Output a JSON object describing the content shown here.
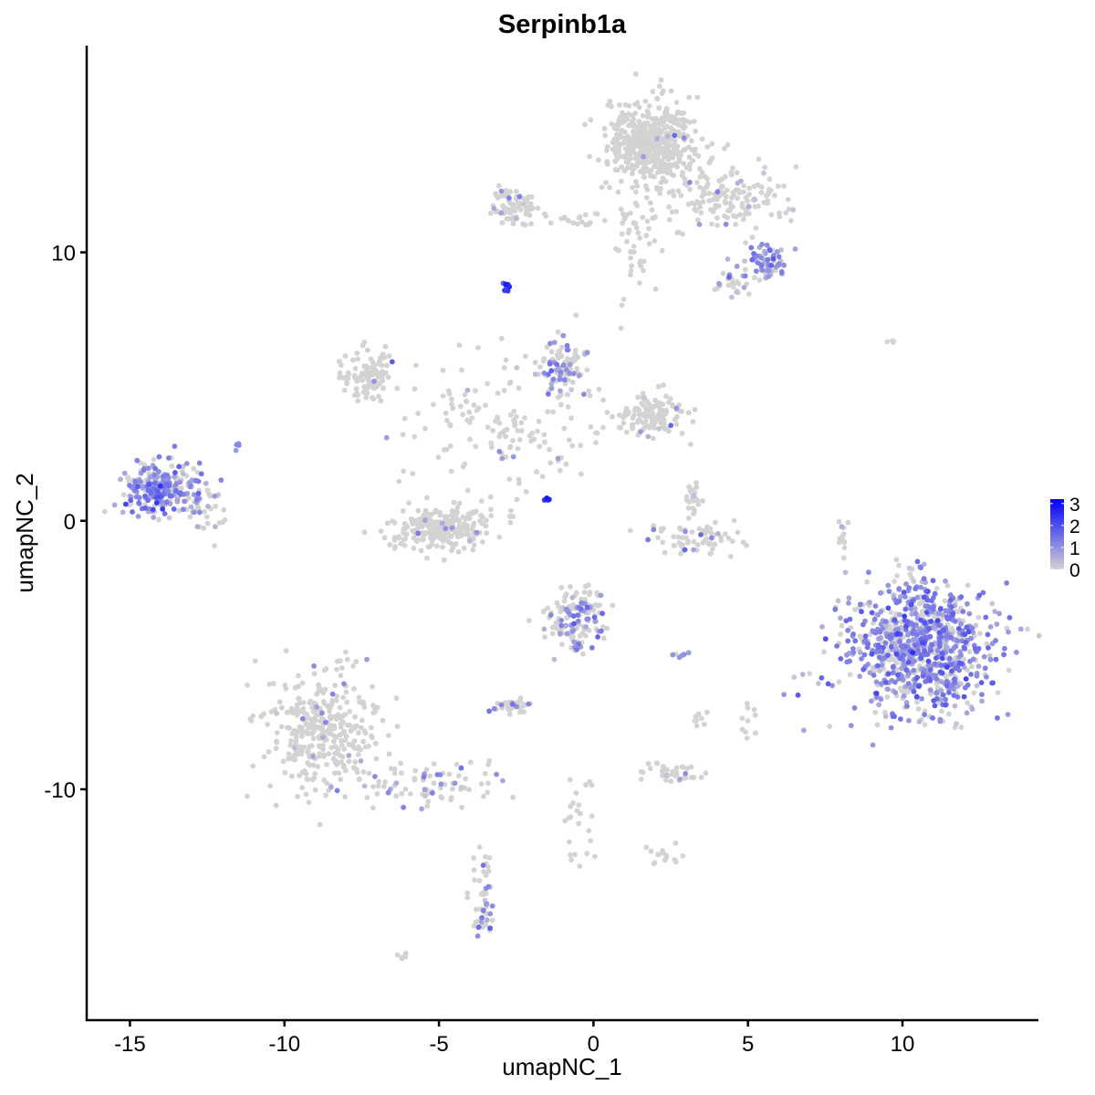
{
  "chart_data": {
    "type": "scatter",
    "title": "Serpinb1a",
    "xlabel": "umapNC_1",
    "ylabel": "umapNC_2",
    "xlim": [
      -16.4,
      14.4
    ],
    "ylim": [
      -18.6,
      17.7
    ],
    "xticks": [
      -15,
      -10,
      -5,
      0,
      5,
      10
    ],
    "yticks": [
      -10,
      0,
      10
    ],
    "xtick_labels": [
      "-15",
      "-10",
      "-5",
      "0",
      "5",
      "10"
    ],
    "ytick_labels": [
      "-10",
      "0",
      "10"
    ],
    "grid": false,
    "legend": {
      "position": "right",
      "min": 0,
      "max": 3.2,
      "ticks": [
        0,
        1,
        2,
        3
      ],
      "tick_labels": [
        "0",
        "1",
        "2",
        "3"
      ],
      "low_color": "#d3d3d3",
      "high_color": "#0000ff"
    },
    "clusters_note": "points summarised as clusters: center, spread (sd), count, fraction expressing, mean expression",
    "clusters": [
      {
        "cx": 1.9,
        "cy": 14.1,
        "sx": 0.7,
        "sy": 0.8,
        "n": 500,
        "p": 0.02,
        "e": 0.8
      },
      {
        "cx": 4.3,
        "cy": 12.0,
        "sx": 0.9,
        "sy": 0.6,
        "n": 150,
        "p": 0.05,
        "e": 0.8
      },
      {
        "cx": -2.5,
        "cy": 11.7,
        "sx": 0.4,
        "sy": 0.35,
        "n": 80,
        "p": 0.05,
        "e": 0.8
      },
      {
        "cx": -0.3,
        "cy": 11.3,
        "sx": 1.0,
        "sy": 0.15,
        "n": 30,
        "p": 0.05,
        "e": 0.8
      },
      {
        "cx": 1.3,
        "cy": 10.3,
        "sx": 0.5,
        "sy": 1.0,
        "n": 40,
        "p": 0.03,
        "e": 0.8
      },
      {
        "cx": 5.6,
        "cy": 9.7,
        "sx": 0.3,
        "sy": 0.3,
        "n": 60,
        "p": 0.8,
        "e": 1.0
      },
      {
        "cx": 4.7,
        "cy": 9.0,
        "sx": 0.4,
        "sy": 0.35,
        "n": 30,
        "p": 0.3,
        "e": 0.9
      },
      {
        "cx": -2.8,
        "cy": 8.7,
        "sx": 0.08,
        "sy": 0.1,
        "n": 10,
        "p": 1.0,
        "e": 2.6
      },
      {
        "cx": -7.3,
        "cy": 5.5,
        "sx": 0.4,
        "sy": 0.5,
        "n": 100,
        "p": 0.03,
        "e": 0.8
      },
      {
        "cx": -1.1,
        "cy": 5.7,
        "sx": 0.45,
        "sy": 0.5,
        "n": 90,
        "p": 0.4,
        "e": 0.9
      },
      {
        "cx": 1.9,
        "cy": 4.0,
        "sx": 0.6,
        "sy": 0.4,
        "n": 130,
        "p": 0.05,
        "e": 0.8
      },
      {
        "cx": -3.0,
        "cy": 3.5,
        "sx": 1.5,
        "sy": 1.2,
        "n": 150,
        "p": 0.08,
        "e": 0.8
      },
      {
        "cx": -4.9,
        "cy": -0.3,
        "sx": 0.8,
        "sy": 0.4,
        "n": 250,
        "p": 0.03,
        "e": 0.8
      },
      {
        "cx": -14.0,
        "cy": 1.2,
        "sx": 0.6,
        "sy": 0.5,
        "n": 250,
        "p": 0.75,
        "e": 1.0
      },
      {
        "cx": -12.6,
        "cy": 0.6,
        "sx": 0.4,
        "sy": 0.6,
        "n": 40,
        "p": 0.3,
        "e": 0.8
      },
      {
        "cx": 3.4,
        "cy": -0.6,
        "sx": 0.8,
        "sy": 0.3,
        "n": 70,
        "p": 0.15,
        "e": 0.9
      },
      {
        "cx": 3.2,
        "cy": 0.8,
        "sx": 0.2,
        "sy": 0.4,
        "n": 25,
        "p": 0.05,
        "e": 0.8
      },
      {
        "cx": 10.5,
        "cy": -4.7,
        "sx": 1.2,
        "sy": 1.2,
        "n": 900,
        "p": 0.7,
        "e": 1.1
      },
      {
        "cx": -0.6,
        "cy": -3.6,
        "sx": 0.5,
        "sy": 0.6,
        "n": 150,
        "p": 0.35,
        "e": 0.9
      },
      {
        "cx": -8.7,
        "cy": -7.8,
        "sx": 0.9,
        "sy": 1.2,
        "n": 350,
        "p": 0.04,
        "e": 0.8
      },
      {
        "cx": -5.2,
        "cy": -9.7,
        "sx": 1.2,
        "sy": 0.4,
        "n": 80,
        "p": 0.25,
        "e": 0.9
      },
      {
        "cx": -3.6,
        "cy": -14.5,
        "sx": 0.2,
        "sy": 0.6,
        "n": 35,
        "p": 0.5,
        "e": 1.0
      },
      {
        "cx": -2.5,
        "cy": -6.9,
        "sx": 0.3,
        "sy": 0.2,
        "n": 30,
        "p": 0.3,
        "e": 0.9
      },
      {
        "cx": 2.5,
        "cy": -9.4,
        "sx": 0.5,
        "sy": 0.2,
        "n": 40,
        "p": 0.03,
        "e": 0.8
      },
      {
        "cx": -0.5,
        "cy": -11.0,
        "sx": 0.3,
        "sy": 1.0,
        "n": 25,
        "p": 0.05,
        "e": 0.8
      },
      {
        "cx": 2.3,
        "cy": -12.5,
        "sx": 0.3,
        "sy": 0.2,
        "n": 15,
        "p": 0.0,
        "e": 0.8
      },
      {
        "cx": -1.5,
        "cy": 0.8,
        "sx": 0.08,
        "sy": 0.06,
        "n": 6,
        "p": 1.0,
        "e": 2.4
      },
      {
        "cx": 8.1,
        "cy": -0.5,
        "sx": 0.1,
        "sy": 0.5,
        "n": 12,
        "p": 0.1,
        "e": 0.8
      },
      {
        "cx": 9.6,
        "cy": 6.7,
        "sx": 0.2,
        "sy": 0.05,
        "n": 4,
        "p": 0.0,
        "e": 0.8
      },
      {
        "cx": -6.1,
        "cy": -16.2,
        "sx": 0.1,
        "sy": 0.05,
        "n": 5,
        "p": 0.0,
        "e": 0.8
      },
      {
        "cx": 5.0,
        "cy": -7.3,
        "sx": 0.1,
        "sy": 0.3,
        "n": 10,
        "p": 0.0,
        "e": 0.8
      },
      {
        "cx": 3.4,
        "cy": -7.5,
        "sx": 0.1,
        "sy": 0.2,
        "n": 8,
        "p": 0.0,
        "e": 0.8
      },
      {
        "cx": 2.8,
        "cy": -5.0,
        "sx": 0.2,
        "sy": 0.05,
        "n": 6,
        "p": 0.6,
        "e": 1.2
      },
      {
        "cx": -3.6,
        "cy": -13.0,
        "sx": 0.15,
        "sy": 0.8,
        "n": 15,
        "p": 0.1,
        "e": 0.8
      },
      {
        "cx": -11.5,
        "cy": 2.8,
        "sx": 0.1,
        "sy": 0.05,
        "n": 4,
        "p": 0.7,
        "e": 1.0
      }
    ]
  }
}
